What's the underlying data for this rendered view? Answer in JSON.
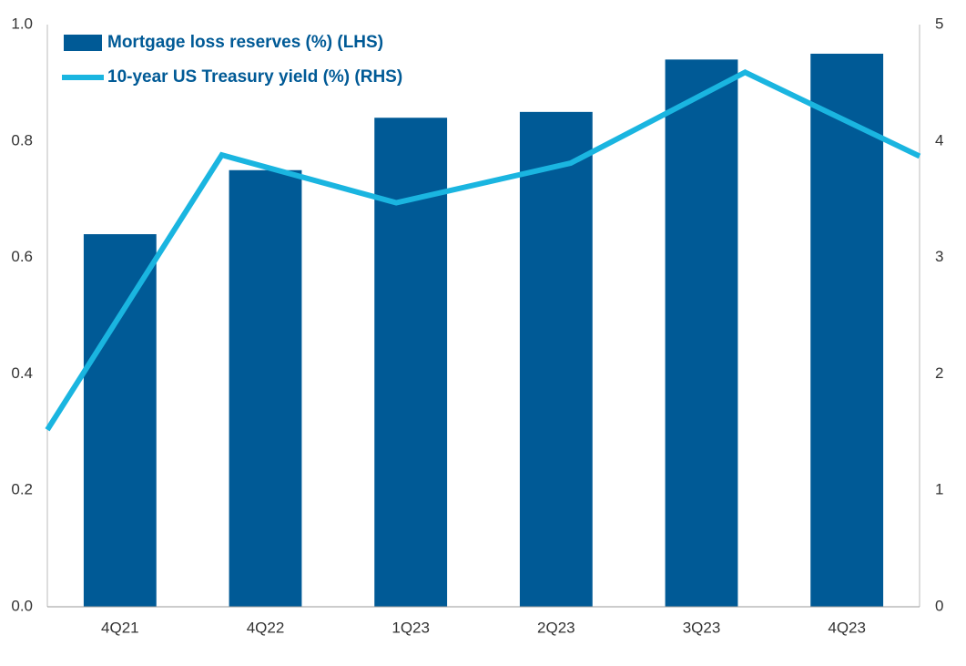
{
  "chart_data": {
    "type": "bar",
    "categories": [
      "4Q21",
      "4Q22",
      "1Q23",
      "2Q23",
      "3Q23",
      "4Q23"
    ],
    "series": [
      {
        "name": "Mortgage loss reserves (%) (LHS)",
        "type": "bar",
        "color": "#005a96",
        "values": [
          0.64,
          0.75,
          0.84,
          0.85,
          0.94,
          0.95
        ]
      },
      {
        "name": "10-year US Treasury yield (%) (RHS)",
        "type": "line",
        "axis": "y2",
        "color": "#1ab5e0",
        "values": [
          1.52,
          3.88,
          3.47,
          3.81,
          4.59,
          3.87
        ]
      }
    ],
    "ylim": [
      0,
      1.0
    ],
    "yticks": [
      {
        "value": 0,
        "label": "0.0"
      },
      0.2,
      0.4,
      0.6,
      0.8,
      {
        "value": 1.0,
        "label": "1.0"
      }
    ],
    "y2lim": [
      0,
      5
    ],
    "y2ticks": [
      0,
      1,
      2,
      3,
      4,
      5
    ],
    "grid": false,
    "legend": "top-left"
  }
}
